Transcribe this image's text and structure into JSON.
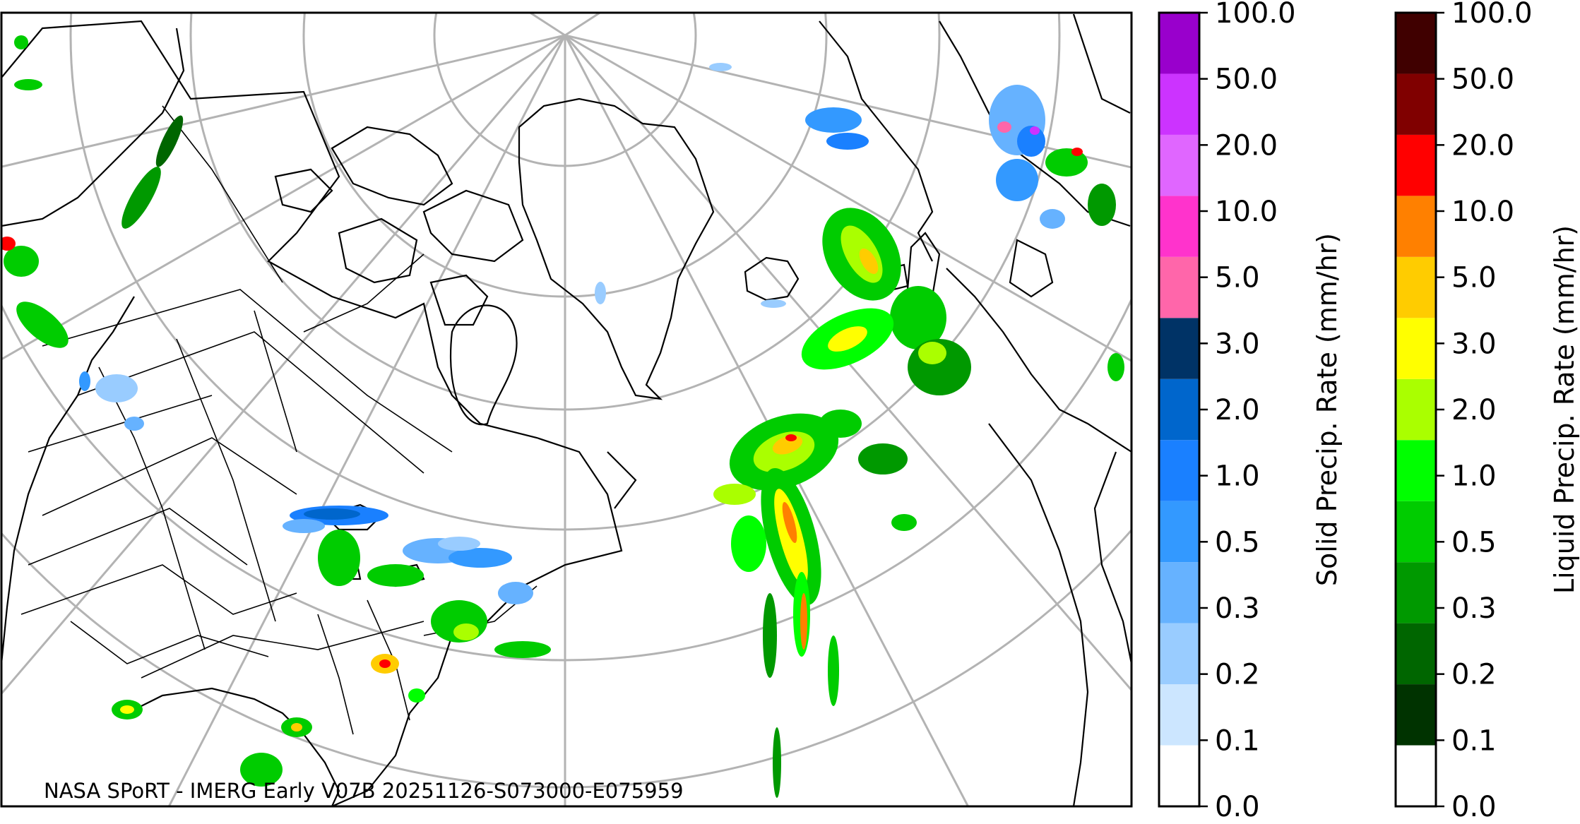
{
  "credit_text": "NASA SPoRT - IMERG Early V07B 20251126-S073000-E075959",
  "solid_colorbar": {
    "title": "Solid Precip. Rate (mm/hr)",
    "ticks": [
      "0.0",
      "0.1",
      "0.2",
      "0.3",
      "0.5",
      "1.0",
      "2.0",
      "3.0",
      "5.0",
      "10.0",
      "20.0",
      "50.0",
      "100.0"
    ],
    "colors": [
      "#ffffff",
      "#cce6ff",
      "#99ccff",
      "#66b2ff",
      "#3399ff",
      "#1a80ff",
      "#0066cc",
      "#003366",
      "#ff66aa",
      "#ff33cc",
      "#e066ff",
      "#cc33ff",
      "#9900cc"
    ]
  },
  "liquid_colorbar": {
    "title": "Liquid Precip. Rate (mm/hr)",
    "ticks": [
      "0.0",
      "0.1",
      "0.2",
      "0.3",
      "0.5",
      "1.0",
      "2.0",
      "3.0",
      "5.0",
      "10.0",
      "20.0",
      "50.0",
      "100.0"
    ],
    "colors": [
      "#ffffff",
      "#003300",
      "#006600",
      "#009900",
      "#00cc00",
      "#00ff00",
      "#aaff00",
      "#ffff00",
      "#ffcc00",
      "#ff8000",
      "#ff0000",
      "#800000",
      "#400000"
    ]
  },
  "map": {
    "projection": "north-polar stereographic",
    "region": "North Atlantic, North America, Greenland, Europe",
    "graticule_color": "#b3b3b3",
    "coast_color": "#000000"
  }
}
